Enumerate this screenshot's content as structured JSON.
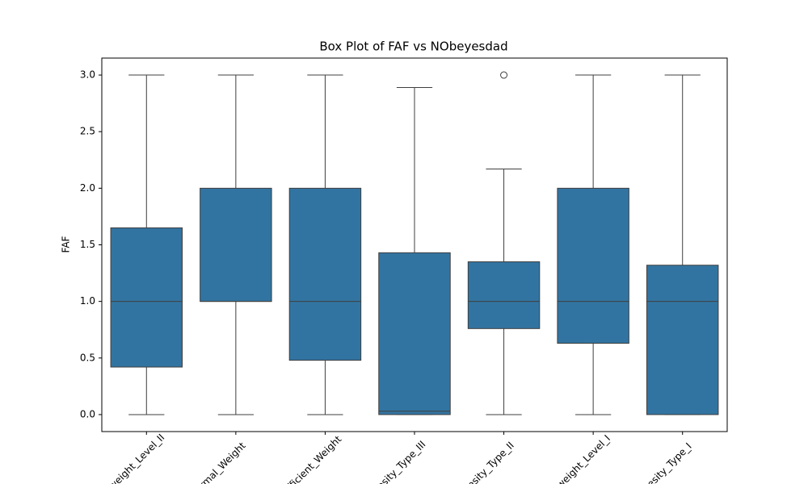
{
  "chart_data": {
    "type": "box",
    "title": "Box Plot of FAF vs NObeyesdad",
    "y_label": "FAF",
    "categories": [
      "Overweight_Level_II",
      "Normal_Weight",
      "Insufficient_Weight",
      "Obesity_Type_III",
      "Obesity_Type_II",
      "Overweight_Level_I",
      "Obesity_Type_I"
    ],
    "whislo": [
      0,
      0,
      0,
      0,
      0,
      0,
      0
    ],
    "q1": [
      0.42,
      1.0,
      0.48,
      0.0,
      0.76,
      0.63,
      0.0
    ],
    "median": [
      1.0,
      1.0,
      1.0,
      0.03,
      1.0,
      1.0,
      1.0
    ],
    "q3": [
      1.65,
      2.0,
      2.0,
      1.43,
      1.35,
      2.0,
      1.32
    ],
    "whishi": [
      3.0,
      3.0,
      3.0,
      2.89,
      2.17,
      3.0,
      3.0
    ],
    "outliers": [
      [],
      [],
      [],
      [],
      [
        3.0
      ],
      [],
      []
    ],
    "color": "#3274a1",
    "ylim": [
      -0.15,
      3.15
    ],
    "yticks": [
      {
        "value": 0,
        "label": "0.0"
      },
      0.5,
      {
        "value": 1,
        "label": "1.0"
      },
      1.5,
      {
        "value": 2,
        "label": "2.0"
      },
      2.5,
      {
        "value": 3,
        "label": "3.0"
      }
    ]
  }
}
